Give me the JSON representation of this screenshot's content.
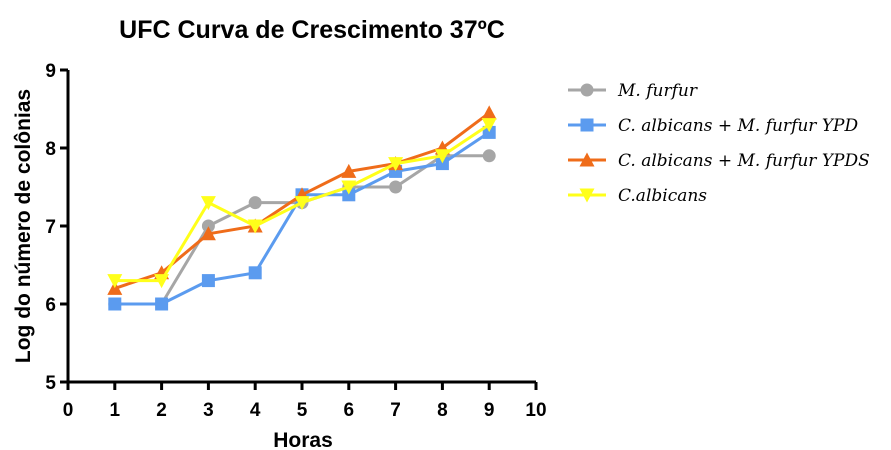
{
  "chart_data": {
    "type": "line",
    "title": "UFC Curva de Crescimento 37ºC",
    "xlabel": "Horas",
    "ylabel": "Log do número de colônias",
    "xlim": [
      0,
      10
    ],
    "ylim": [
      5,
      9
    ],
    "xticks": [
      "0",
      "1",
      "2",
      "3",
      "4",
      "5",
      "6",
      "7",
      "8",
      "9",
      "10"
    ],
    "yticks": [
      "5",
      "6",
      "7",
      "8",
      "9"
    ],
    "grid": false,
    "legend_position": "right",
    "x": [
      1,
      2,
      3,
      4,
      5,
      6,
      7,
      8,
      9
    ],
    "series": [
      {
        "name": "M. furfur",
        "color": "#a6a6a6",
        "marker": "circle",
        "values": [
          6.0,
          6.0,
          7.0,
          7.3,
          7.3,
          7.5,
          7.5,
          7.9,
          7.9
        ]
      },
      {
        "name": "C. albicans + M. furfur YPD",
        "color": "#5b9bef",
        "marker": "square",
        "values": [
          6.0,
          6.0,
          6.3,
          6.4,
          7.4,
          7.4,
          7.7,
          7.8,
          8.2
        ]
      },
      {
        "name": "C. albicans + M. furfur YPDS",
        "color": "#ef6c1a",
        "marker": "triangle-up",
        "values": [
          6.2,
          6.4,
          6.9,
          7.0,
          7.4,
          7.7,
          7.8,
          8.0,
          8.45
        ]
      },
      {
        "name": "C.albicans",
        "color": "#ffff1a",
        "marker": "triangle-down",
        "values": [
          6.3,
          6.3,
          7.3,
          7.0,
          7.3,
          7.5,
          7.8,
          7.9,
          8.3
        ]
      }
    ]
  }
}
